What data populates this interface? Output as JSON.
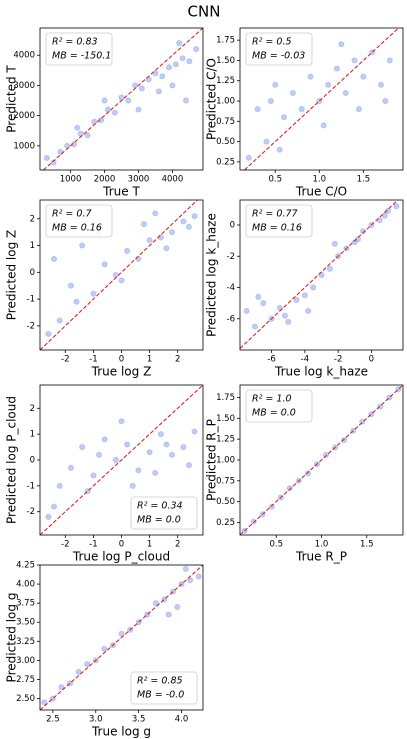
{
  "title": "CNN",
  "chart_data": [
    {
      "type": "scatter",
      "xlabel": "True T",
      "ylabel": "Predicted T",
      "annotations": [
        "R² = 0.83",
        "MB = -150.1"
      ],
      "annotation_loc": "upper left",
      "color": "#4a6fe3",
      "xlim": [
        100,
        4900
      ],
      "ylim": [
        200,
        4900
      ],
      "xticks": [
        1000,
        2000,
        3000,
        4000
      ],
      "yticks": [
        1000,
        2000,
        3000,
        4000
      ],
      "x": [
        300,
        500,
        700,
        900,
        1100,
        1300,
        1500,
        1700,
        1900,
        2100,
        2300,
        2500,
        2700,
        2900,
        3100,
        3300,
        3500,
        3700,
        3900,
        4100,
        4300,
        4500,
        4700,
        2000,
        3000,
        4000,
        4400,
        1200,
        3600,
        4200
      ],
      "y": [
        600,
        450,
        800,
        1000,
        1050,
        1400,
        1350,
        1800,
        1850,
        2200,
        2100,
        2600,
        2500,
        3000,
        2900,
        3200,
        3400,
        3300,
        3600,
        3700,
        3900,
        3800,
        4200,
        2500,
        2200,
        3000,
        2500,
        1600,
        2800,
        4400
      ]
    },
    {
      "type": "scatter",
      "xlabel": "True C/O",
      "ylabel": "Predicted C/O",
      "annotations": [
        "R² = 0.5",
        "MB = -0.03"
      ],
      "annotation_loc": "upper left",
      "color": "#4a6fe3",
      "xlim": [
        0.1,
        1.95
      ],
      "ylim": [
        0.15,
        1.9
      ],
      "xticks": [
        0.5,
        {
          "value": 1,
          "label": "1.0"
        },
        1.5
      ],
      "yticks": [
        0.25,
        {
          "value": 0.5,
          "label": "0.50"
        },
        0.75,
        {
          "value": 1,
          "label": "1.00"
        },
        1.25,
        {
          "value": 1.5,
          "label": "1.50"
        },
        1.75
      ],
      "x": [
        0.2,
        0.3,
        0.4,
        0.5,
        0.6,
        0.7,
        0.8,
        0.9,
        1.0,
        1.1,
        1.2,
        1.3,
        1.4,
        1.5,
        1.6,
        1.7,
        1.8,
        0.35,
        0.55,
        0.75,
        1.05,
        1.45,
        1.75,
        0.45,
        1.25
      ],
      "y": [
        0.3,
        0.9,
        0.5,
        1.2,
        0.8,
        1.1,
        0.9,
        1.3,
        1.0,
        1.2,
        1.4,
        1.1,
        1.5,
        1.3,
        1.6,
        1.2,
        1.5,
        1.5,
        0.4,
        1.6,
        0.7,
        0.9,
        1.0,
        1.0,
        1.7
      ]
    },
    {
      "type": "scatter",
      "xlabel": "True log Z",
      "ylabel": "Predicted log Z",
      "annotations": [
        "R² = 0.7",
        "MB = 0.16"
      ],
      "annotation_loc": "upper left",
      "color": "#4a6fe3",
      "xlim": [
        -2.9,
        2.9
      ],
      "ylim": [
        -2.9,
        2.7
      ],
      "xticks": [
        -2,
        -1,
        0,
        1,
        2
      ],
      "yticks": [
        -2,
        -1,
        0,
        1,
        2
      ],
      "x": [
        -2.6,
        -2.2,
        -1.8,
        -1.4,
        -1,
        -0.6,
        -0.2,
        0.2,
        0.6,
        1,
        1.4,
        1.8,
        2.2,
        2.6,
        -2.4,
        -1.6,
        -0.8,
        0,
        0.8,
        1.6,
        2.4,
        -2,
        1.2
      ],
      "y": [
        -2.3,
        -1.8,
        -0.5,
        1.0,
        -0.8,
        0.3,
        -0.1,
        0.8,
        0.5,
        1.2,
        1.3,
        1.5,
        1.9,
        2.1,
        0.5,
        -1.1,
        1.5,
        -0.3,
        1.8,
        0.9,
        1.7,
        1.6,
        2.2
      ]
    },
    {
      "type": "scatter",
      "xlabel": "True log k_haze",
      "ylabel": "Predicted log k_haze",
      "annotations": [
        "R² = 0.77",
        "MB = 0.16"
      ],
      "annotation_loc": "upper left",
      "color": "#4a6fe3",
      "xlim": [
        -7.9,
        1.9
      ],
      "ylim": [
        -8,
        1.6
      ],
      "xticks": [
        -6,
        -4,
        -2,
        0
      ],
      "yticks": [
        -6,
        -4,
        -2,
        0
      ],
      "x": [
        -7.5,
        -7,
        -6.5,
        -6,
        -5.5,
        -5,
        -4.5,
        -4,
        -3.5,
        -3,
        -2.5,
        -2,
        -1.5,
        -1,
        -0.5,
        0,
        0.5,
        1,
        1.5,
        -6.8,
        -5.2,
        -3.8,
        -2.2,
        -0.8,
        0.8
      ],
      "y": [
        -5.5,
        -6.5,
        -5,
        -6,
        -5.3,
        -6.2,
        -4.8,
        -4.5,
        -4,
        -3.2,
        -2.8,
        -2,
        -1.5,
        -1.1,
        -0.4,
        0,
        0.3,
        0.9,
        1.2,
        -4.6,
        -5.8,
        -5.5,
        -1.2,
        -0.9,
        0.6
      ]
    },
    {
      "type": "scatter",
      "xlabel": "True log P_cloud",
      "ylabel": "Predicted log P_cloud",
      "annotations": [
        "R² = 0.34",
        "MB = 0.0"
      ],
      "annotation_loc": "lower right",
      "color": "#4a6fe3",
      "xlim": [
        -2.9,
        2.9
      ],
      "ylim": [
        -2.9,
        2.9
      ],
      "xticks": [
        -2,
        -1,
        0,
        1,
        2
      ],
      "yticks": [
        -2,
        -1,
        0,
        1,
        2
      ],
      "x": [
        -2.6,
        -2.2,
        -1.8,
        -1.4,
        -1,
        -0.6,
        -0.2,
        0.2,
        0.6,
        1,
        1.4,
        1.8,
        2.2,
        2.6,
        -2.4,
        -1.2,
        0,
        1.2,
        2.4,
        -0.8,
        0.4,
        1.6
      ],
      "y": [
        -2.2,
        -1,
        -0.3,
        0.5,
        -0.6,
        0.8,
        0,
        0.6,
        -0.4,
        0.3,
        1,
        0.2,
        0.5,
        1.1,
        -1.8,
        -1.2,
        1.5,
        -0.5,
        -0.2,
        0.2,
        -1,
        0.6
      ]
    },
    {
      "type": "scatter",
      "xlabel": "True R_P",
      "ylabel": "Predicted R_P",
      "annotations": [
        "R² = 1.0",
        "MB = 0.0"
      ],
      "annotation_loc": "upper left",
      "color": "#4a6fe3",
      "xlim": [
        0.1,
        1.9
      ],
      "ylim": [
        0.1,
        1.9
      ],
      "xticks": [
        0.5,
        {
          "value": 1,
          "label": "1.0"
        },
        1.5
      ],
      "yticks": [
        0.25,
        {
          "value": 0.5,
          "label": "0.50"
        },
        0.75,
        {
          "value": 1,
          "label": "1.00"
        },
        1.25,
        {
          "value": 1.5,
          "label": "1.50"
        },
        1.75
      ],
      "x": [
        0.15,
        0.25,
        0.35,
        0.45,
        0.55,
        0.65,
        0.75,
        0.85,
        0.95,
        1.05,
        1.15,
        1.25,
        1.35,
        1.45,
        1.55,
        1.65,
        1.75,
        1.85
      ],
      "y": [
        0.15,
        0.26,
        0.35,
        0.44,
        0.55,
        0.66,
        0.75,
        0.84,
        0.95,
        1.06,
        1.15,
        1.24,
        1.35,
        1.46,
        1.55,
        1.64,
        1.75,
        1.85
      ]
    },
    {
      "type": "scatter",
      "xlabel": "True log g",
      "ylabel": "Predicted log g",
      "annotations": [
        "R² = 0.85",
        "MB = -0.0"
      ],
      "annotation_loc": "lower right",
      "color": "#4a6fe3",
      "xlim": [
        2.35,
        4.25
      ],
      "ylim": [
        2.35,
        4.25
      ],
      "xticks": [
        2.5,
        {
          "value": 3,
          "label": "3.0"
        },
        3.5,
        {
          "value": 4,
          "label": "4.0"
        }
      ],
      "yticks": [
        {
          "value": 2.5,
          "label": "2.50"
        },
        2.75,
        {
          "value": 3,
          "label": "3.00"
        },
        3.25,
        {
          "value": 3.5,
          "label": "3.50"
        },
        3.75,
        {
          "value": 4,
          "label": "4.00"
        },
        4.25
      ],
      "x": [
        2.4,
        2.5,
        2.6,
        2.7,
        2.8,
        2.9,
        3.0,
        3.1,
        3.2,
        3.3,
        3.4,
        3.5,
        3.6,
        3.7,
        3.8,
        3.9,
        4.0,
        4.1,
        4.2,
        3.85,
        3.95,
        4.05
      ],
      "y": [
        2.45,
        2.5,
        2.65,
        2.7,
        2.85,
        2.95,
        3.0,
        3.15,
        3.2,
        3.35,
        3.4,
        3.5,
        3.6,
        3.75,
        3.8,
        3.9,
        4.0,
        4.05,
        4.1,
        3.6,
        3.7,
        4.2
      ]
    }
  ]
}
